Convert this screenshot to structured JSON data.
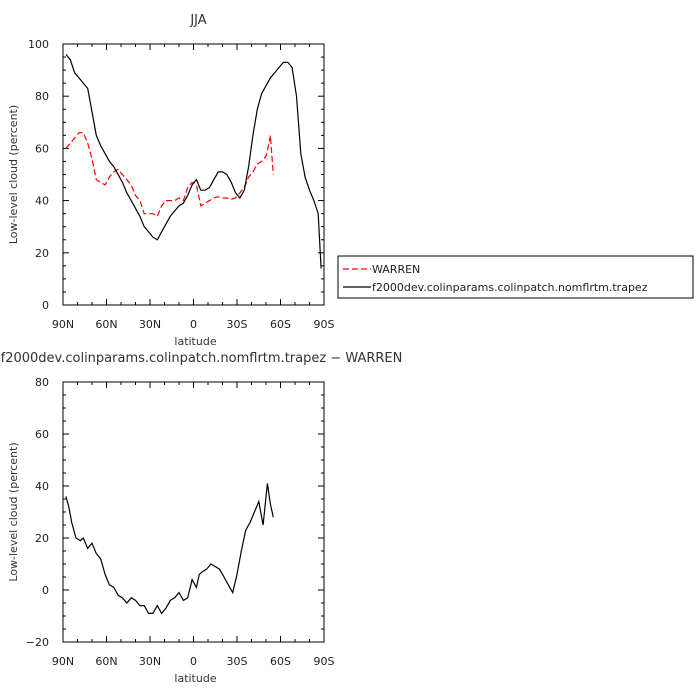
{
  "chart_data": [
    {
      "type": "line",
      "title": "JJA",
      "xlabel": "latitude",
      "ylabel": "Low-level cloud (percent)",
      "ylim": [
        0,
        100
      ],
      "y_ticks": [
        0,
        20,
        40,
        60,
        80,
        100
      ],
      "y_tick_labels": [
        "0",
        "20",
        "40",
        "60",
        "80",
        "100"
      ],
      "xlim": [
        90,
        -90
      ],
      "x_ticks": [
        90,
        60,
        30,
        0,
        -30,
        -60,
        -90
      ],
      "x_tick_labels": [
        "90N",
        "60N",
        "30N",
        "0",
        "30S",
        "60S",
        "90S"
      ],
      "legend_position": "right",
      "series": [
        {
          "name": "WARREN",
          "color": "#ff0000",
          "dashed": true,
          "x": [
            88,
            85,
            82,
            79,
            76,
            73,
            70,
            67,
            64,
            61,
            58,
            55,
            52,
            49,
            46,
            43,
            40,
            37,
            34,
            31,
            28,
            25,
            22,
            19,
            16,
            13,
            10,
            7,
            4,
            1,
            -2,
            -5,
            -8,
            -11,
            -14,
            -17,
            -20,
            -23,
            -26,
            -29,
            -32,
            -35,
            -38,
            -41,
            -44,
            -47,
            -50,
            -51,
            -53,
            -55
          ],
          "y": [
            60,
            62,
            64,
            66,
            66,
            62,
            56,
            48,
            47,
            46,
            49,
            51,
            52,
            50,
            48,
            46,
            42,
            40,
            35,
            35,
            35,
            34,
            38,
            40,
            40,
            40,
            41,
            40,
            45,
            47,
            46,
            38,
            39,
            40,
            41,
            41.5,
            41,
            41,
            40.5,
            41,
            43,
            45,
            49,
            51,
            54,
            55,
            57,
            59,
            65,
            50
          ]
        },
        {
          "name": "f2000dev.colinparams.colinpatch.nomflrtm.trapez",
          "color": "#000000",
          "dashed": false,
          "x": [
            88,
            85,
            82,
            79,
            76,
            73,
            70,
            67,
            64,
            61,
            58,
            55,
            52,
            49,
            46,
            43,
            40,
            37,
            34,
            31,
            28,
            25,
            22,
            19,
            16,
            13,
            10,
            7,
            4,
            1,
            -2,
            -5,
            -8,
            -11,
            -14,
            -17,
            -20,
            -23,
            -26,
            -29,
            -32,
            -35,
            -38,
            -41,
            -44,
            -47,
            -50,
            -53,
            -56,
            -59,
            -62,
            -65,
            -68,
            -71,
            -74,
            -77,
            -80,
            -83,
            -86,
            -88
          ],
          "y": [
            96,
            94,
            89,
            87,
            85,
            83,
            74,
            65,
            61,
            58,
            55,
            53,
            50,
            47,
            43,
            40,
            37,
            34,
            30,
            28,
            26,
            25,
            28,
            31,
            34,
            36,
            38,
            39,
            42,
            46,
            48,
            44,
            44,
            45,
            48,
            51,
            51,
            50,
            47,
            43,
            41,
            44,
            53,
            65,
            75,
            81,
            84,
            87,
            89,
            91,
            93,
            93,
            91,
            80,
            58,
            49,
            44,
            40,
            35,
            14
          ]
        }
      ]
    },
    {
      "type": "line",
      "title": "f2000dev.colinparams.colinpatch.nomflrtm.trapez  −  WARREN",
      "xlabel": "latitude",
      "ylabel": "Low-level cloud (percent)",
      "ylim": [
        -20,
        80
      ],
      "y_ticks": [
        -20,
        0,
        20,
        40,
        60,
        80
      ],
      "y_tick_labels": [
        "−20",
        "0",
        "20",
        "40",
        "60",
        "80"
      ],
      "xlim": [
        90,
        -90
      ],
      "x_ticks": [
        90,
        60,
        30,
        0,
        -30,
        -60,
        -90
      ],
      "x_tick_labels": [
        "90N",
        "60N",
        "30N",
        "0",
        "30S",
        "60S",
        "90S"
      ],
      "series": [
        {
          "color": "#000000",
          "dashed": false,
          "x": [
            88,
            86,
            84,
            81,
            78,
            76,
            73,
            70,
            67,
            64,
            61,
            58,
            55,
            52,
            49,
            46,
            43,
            40,
            37,
            34,
            31,
            28,
            25,
            22,
            19,
            16,
            13,
            10,
            7,
            4,
            1,
            -2,
            -4,
            -6,
            -9,
            -12,
            -15,
            -18,
            -21,
            -24,
            -27,
            -30,
            -33,
            -36,
            -39,
            -42,
            -45,
            -48,
            -51,
            -53,
            -55
          ],
          "y": [
            36,
            32,
            26,
            20,
            19,
            20,
            16,
            18,
            14,
            12,
            6,
            2,
            1,
            -2,
            -3,
            -5,
            -3,
            -4,
            -6,
            -6,
            -9,
            -9,
            -6,
            -9,
            -7,
            -4,
            -3,
            -1,
            -4,
            -3,
            4,
            1,
            6,
            7,
            8,
            10,
            9,
            8,
            5,
            2,
            -1,
            6,
            15,
            23,
            26,
            30,
            34,
            25,
            41,
            33,
            28
          ]
        }
      ]
    }
  ]
}
